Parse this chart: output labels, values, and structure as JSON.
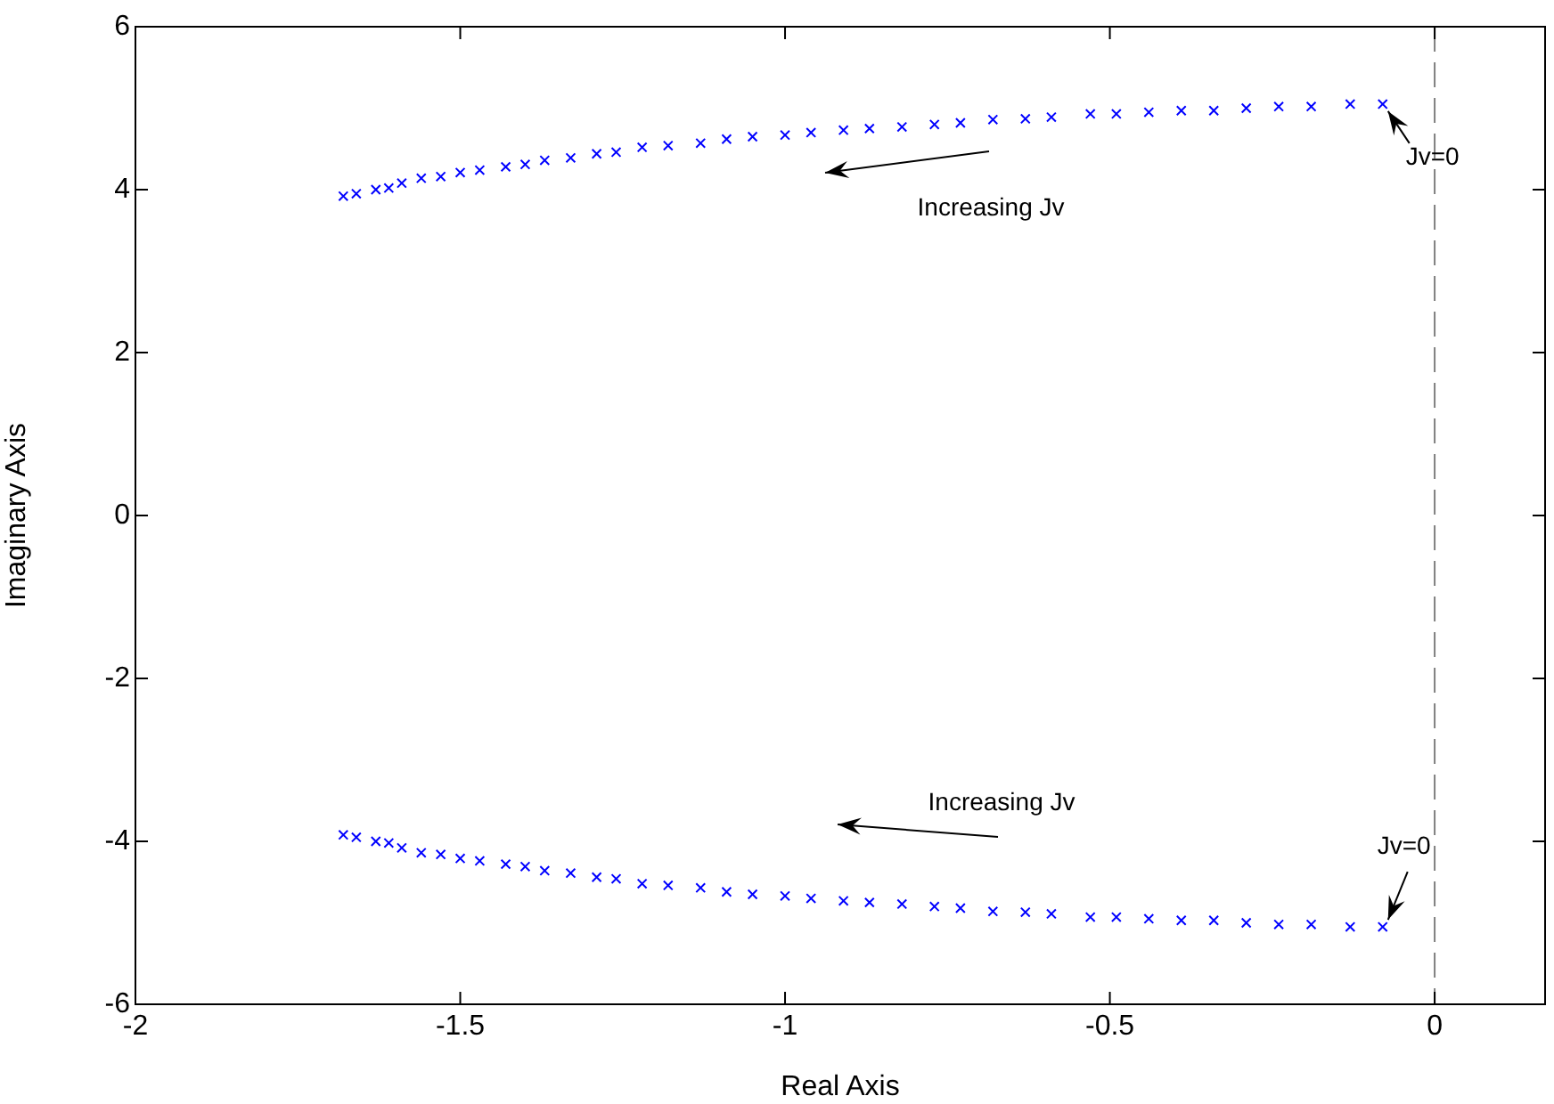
{
  "chart_data": {
    "type": "scatter",
    "xlabel": "Real Axis",
    "ylabel": "Imaginary Axis",
    "xlim": [
      -2,
      0.17
    ],
    "xticks": [
      -2,
      -1.5,
      -1,
      -0.5,
      0
    ],
    "ylim": [
      -6,
      6
    ],
    "yticks": [
      -6,
      -4,
      -2,
      0,
      2,
      4,
      6
    ],
    "grid": false,
    "legend": false,
    "marker": "cross",
    "series": [
      {
        "color": "#0000ff",
        "x": [
          -1.68,
          -1.66,
          -1.63,
          -1.61,
          -1.59,
          -1.56,
          -1.53,
          -1.5,
          -1.47,
          -1.43,
          -1.4,
          -1.37,
          -1.33,
          -1.29,
          -1.26,
          -1.22,
          -1.18,
          -1.13,
          -1.09,
          -1.05,
          -1.0,
          -0.96,
          -0.91,
          -0.87,
          -0.82,
          -0.77,
          -0.73,
          -0.68,
          -0.63,
          -0.59,
          -0.53,
          -0.49,
          -0.44,
          -0.39,
          -0.34,
          -0.29,
          -0.24,
          -0.19,
          -0.13,
          -0.08
        ],
        "values": [
          3.92,
          3.95,
          4.0,
          4.02,
          4.08,
          4.14,
          4.16,
          4.21,
          4.24,
          4.28,
          4.31,
          4.36,
          4.39,
          4.44,
          4.46,
          4.52,
          4.54,
          4.57,
          4.62,
          4.65,
          4.67,
          4.7,
          4.73,
          4.75,
          4.77,
          4.8,
          4.82,
          4.86,
          4.87,
          4.89,
          4.93,
          4.93,
          4.95,
          4.97,
          4.97,
          5.0,
          5.02,
          5.02,
          5.05,
          5.05
        ]
      },
      {
        "color": "#0000ff",
        "x": [
          -1.68,
          -1.66,
          -1.63,
          -1.61,
          -1.59,
          -1.56,
          -1.53,
          -1.5,
          -1.47,
          -1.43,
          -1.4,
          -1.37,
          -1.33,
          -1.29,
          -1.26,
          -1.22,
          -1.18,
          -1.13,
          -1.09,
          -1.05,
          -1.0,
          -0.96,
          -0.91,
          -0.87,
          -0.82,
          -0.77,
          -0.73,
          -0.68,
          -0.63,
          -0.59,
          -0.53,
          -0.49,
          -0.44,
          -0.39,
          -0.34,
          -0.29,
          -0.24,
          -0.19,
          -0.13,
          -0.08
        ],
        "values": [
          -3.92,
          -3.95,
          -4.0,
          -4.02,
          -4.08,
          -4.14,
          -4.16,
          -4.21,
          -4.24,
          -4.28,
          -4.31,
          -4.36,
          -4.39,
          -4.44,
          -4.46,
          -4.52,
          -4.54,
          -4.57,
          -4.62,
          -4.65,
          -4.67,
          -4.7,
          -4.73,
          -4.75,
          -4.77,
          -4.8,
          -4.82,
          -4.86,
          -4.87,
          -4.89,
          -4.93,
          -4.93,
          -4.95,
          -4.97,
          -4.97,
          -5.0,
          -5.02,
          -5.02,
          -5.05,
          -5.05
        ]
      }
    ],
    "ref_lines": [
      {
        "axis": "x",
        "value": 0,
        "color": "#808080",
        "line_style": "dashed"
      }
    ],
    "annotations": [
      "Increasing Jv",
      {
        "text": "Jv=0",
        "x": -0.08,
        "y": 5.05
      },
      "Increasing Jv",
      {
        "text": "Jv=0",
        "x": -0.08,
        "y": -5.05
      }
    ]
  }
}
